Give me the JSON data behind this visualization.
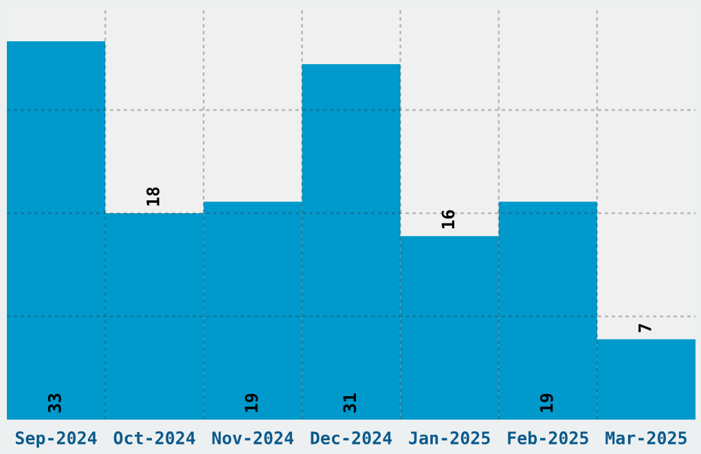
{
  "chart_data": {
    "type": "bar",
    "categories": [
      "Sep-2024",
      "Oct-2024",
      "Nov-2024",
      "Dec-2024",
      "Jan-2025",
      "Feb-2025",
      "Mar-2025"
    ],
    "values": [
      33,
      18,
      19,
      31,
      16,
      19,
      7
    ],
    "color": "#0099cc",
    "ylim": [
      0,
      36
    ],
    "yticks": [
      {
        "value": 9,
        "label": null
      },
      {
        "value": 18,
        "label": null
      },
      {
        "value": 27,
        "label": null
      }
    ],
    "tick_labels": "x",
    "grid": true,
    "data_labels": true
  }
}
